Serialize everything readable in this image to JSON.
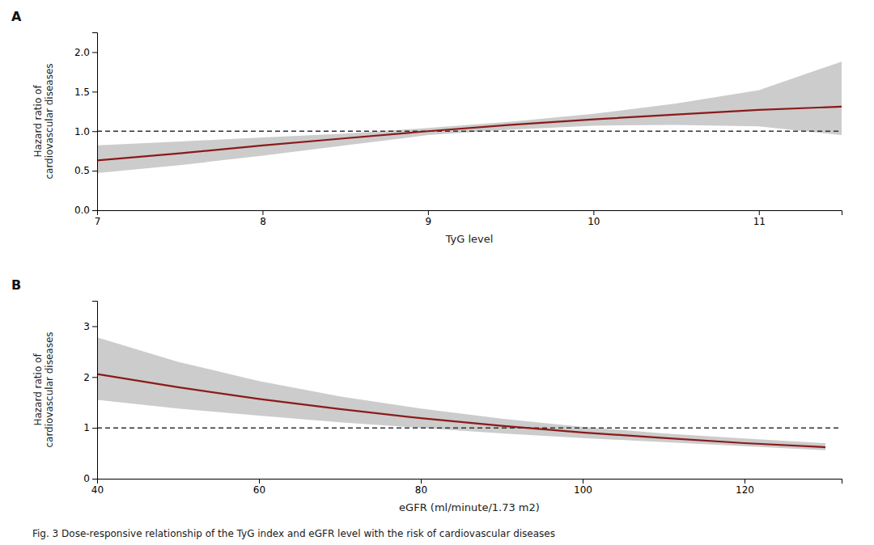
{
  "chart_data": [
    {
      "type": "line",
      "title": "A",
      "x_label": "TyG level",
      "y_label": "Hazard ratio of\ncardiovascular diseases",
      "x": [
        7.0,
        7.5,
        8.0,
        8.5,
        9.0,
        9.5,
        10.0,
        10.5,
        11.0,
        11.5
      ],
      "series": [
        {
          "color": "#8B1A1A",
          "values": [
            0.63,
            0.72,
            0.82,
            0.91,
            1.0,
            1.08,
            1.15,
            1.21,
            1.27,
            1.31
          ],
          "ci_upper": [
            0.82,
            0.87,
            0.92,
            0.97,
            1.04,
            1.12,
            1.22,
            1.35,
            1.52,
            1.88
          ],
          "ci_lower": [
            0.47,
            0.57,
            0.69,
            0.82,
            0.95,
            1.02,
            1.07,
            1.08,
            1.06,
            0.95
          ]
        }
      ],
      "reference_y": 1.0,
      "xlim": [
        7.0,
        11.5
      ],
      "xticks": [
        7,
        8,
        9,
        10,
        11
      ],
      "ylim": [
        0.0,
        2.25
      ],
      "yticks": [
        {
          "value": 0.0,
          "label": "0.0"
        },
        0.5,
        {
          "value": 1.0,
          "label": "1.0"
        },
        1.5,
        {
          "value": 2.0,
          "label": "2.0"
        }
      ],
      "grid": false
    },
    {
      "type": "line",
      "title": "B",
      "x_label": "eGFR (ml/minute/1.73 m2)",
      "y_label": "Hazard ratio of\ncardiovascular diseases",
      "x": [
        40,
        50,
        60,
        70,
        80,
        90,
        100,
        110,
        120,
        130
      ],
      "series": [
        {
          "color": "#8B1A1A",
          "values": [
            2.06,
            1.8,
            1.57,
            1.37,
            1.19,
            1.04,
            0.91,
            0.8,
            0.7,
            0.62
          ],
          "ci_upper": [
            2.78,
            2.3,
            1.92,
            1.62,
            1.38,
            1.18,
            1.02,
            0.89,
            0.79,
            0.7
          ],
          "ci_lower": [
            1.55,
            1.38,
            1.24,
            1.11,
            1.0,
            0.89,
            0.8,
            0.72,
            0.64,
            0.56
          ]
        }
      ],
      "reference_y": 1.0,
      "xlim": [
        40,
        132
      ],
      "xticks": [
        40,
        60,
        80,
        100,
        120
      ],
      "ylim": [
        0.0,
        3.5
      ],
      "yticks": [
        0,
        1,
        2,
        3
      ],
      "grid": false
    }
  ],
  "caption": "Fig. 3  Dose-responsive relationship of the TyG index and eGFR level with the risk of cardiovascular diseases"
}
